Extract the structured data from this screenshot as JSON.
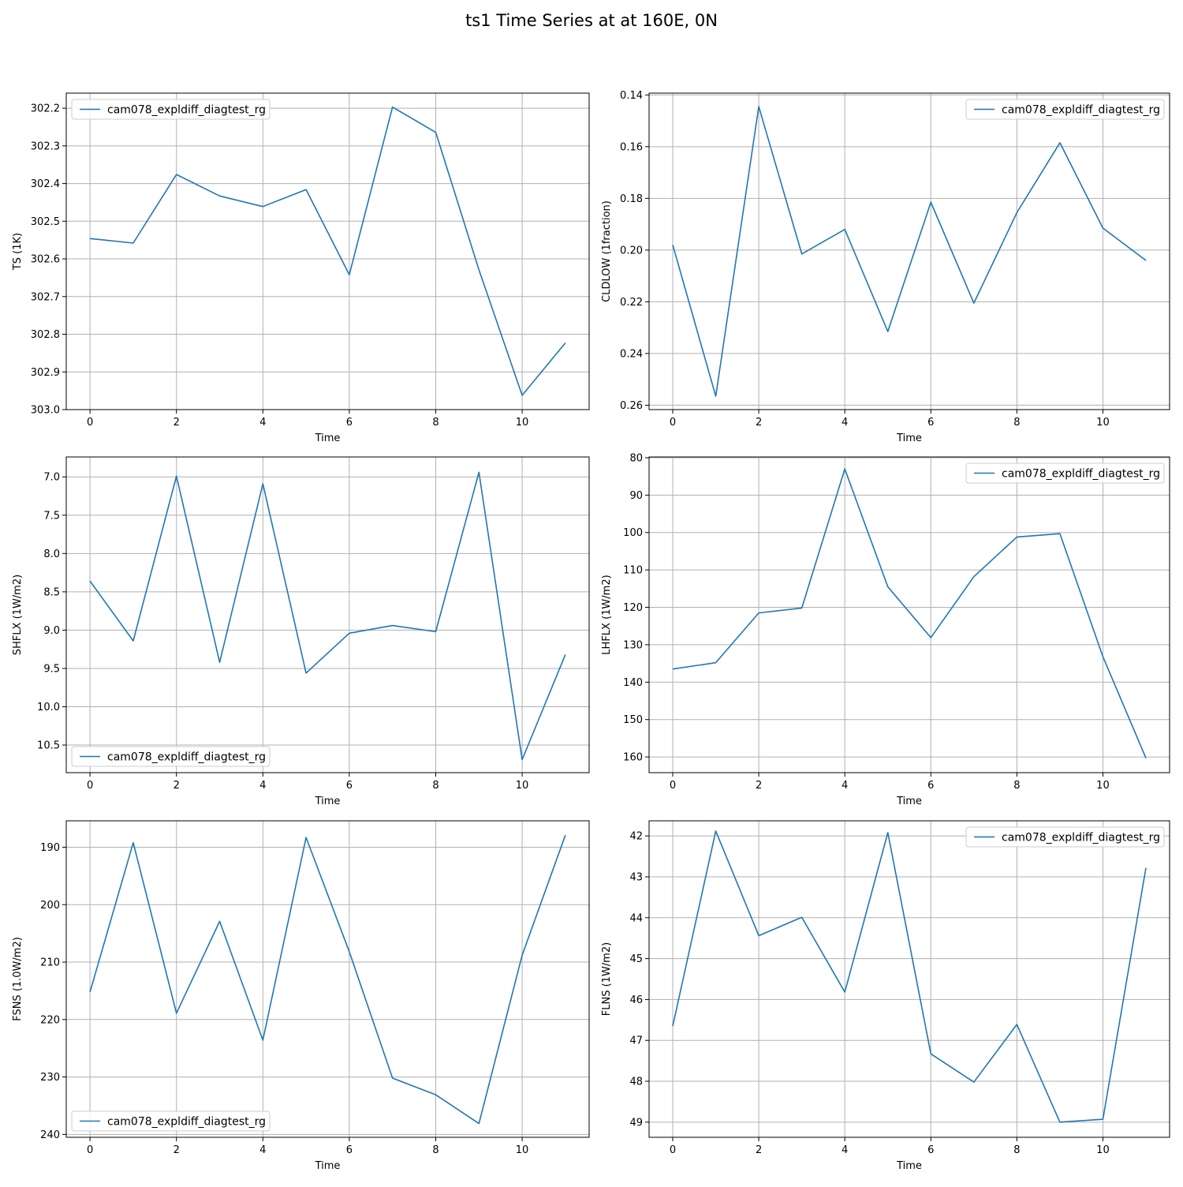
{
  "figure": {
    "title": "ts1 Time Series at at 160E, 0N"
  },
  "colors": {
    "series": "#1f77b4",
    "grid": "#b0b0b0",
    "axes": "#000000",
    "legend_border": "#cccccc"
  },
  "chart_data": [
    {
      "type": "line",
      "xlabel": "Time",
      "ylabel": "TS (1K)",
      "xlim": [
        -0.55,
        11.55
      ],
      "ylim": [
        303.0,
        302.16
      ],
      "y_inverted": true,
      "grid": true,
      "legend_loc": "upper-left",
      "xticks": [
        0,
        2,
        4,
        6,
        8,
        10
      ],
      "yticks": [
        302.2,
        302.3,
        302.4,
        302.5,
        302.6,
        302.7,
        302.8,
        302.9,
        303.0
      ],
      "ytick_labels": [
        "302.2",
        "302.3",
        "302.4",
        "302.5",
        "302.6",
        "302.7",
        "302.8",
        "302.9",
        "303.0"
      ],
      "x": [
        0,
        1,
        2,
        3,
        4,
        5,
        6,
        7,
        8,
        9,
        10,
        11
      ],
      "series": [
        {
          "name": "cam078_expldiff_diagtest_rg",
          "values": [
            302.546,
            302.558,
            302.376,
            302.433,
            302.461,
            302.416,
            302.642,
            302.197,
            302.264,
            302.629,
            302.962,
            302.823
          ]
        }
      ]
    },
    {
      "type": "line",
      "xlabel": "Time",
      "ylabel": "CLDLOW (1fraction)",
      "xlim": [
        -0.55,
        11.55
      ],
      "ylim": [
        0.2617,
        0.1393
      ],
      "y_inverted": true,
      "grid": true,
      "legend_loc": "upper-right",
      "xticks": [
        0,
        2,
        4,
        6,
        8,
        10
      ],
      "yticks": [
        0.14,
        0.16,
        0.18,
        0.2,
        0.22,
        0.24,
        0.26
      ],
      "ytick_labels": [
        "0.14",
        "0.16",
        "0.18",
        "0.20",
        "0.22",
        "0.24",
        "0.26"
      ],
      "x": [
        0,
        1,
        2,
        3,
        4,
        5,
        6,
        7,
        8,
        9,
        10,
        11
      ],
      "series": [
        {
          "name": "cam078_expldiff_diagtest_rg",
          "values": [
            0.198,
            0.2565,
            0.1445,
            0.2015,
            0.192,
            0.2315,
            0.1815,
            0.2205,
            0.1855,
            0.1585,
            0.1915,
            0.204
          ]
        }
      ]
    },
    {
      "type": "line",
      "xlabel": "Time",
      "ylabel": "SHFLX (1W/m2)",
      "xlim": [
        -0.55,
        11.55
      ],
      "ylim": [
        10.86,
        6.74
      ],
      "y_inverted": true,
      "grid": true,
      "legend_loc": "lower-left",
      "xticks": [
        0,
        2,
        4,
        6,
        8,
        10
      ],
      "yticks": [
        7.0,
        7.5,
        8.0,
        8.5,
        9.0,
        9.5,
        10.0,
        10.5
      ],
      "ytick_labels": [
        "7.0",
        "7.5",
        "8.0",
        "8.5",
        "9.0",
        "9.5",
        "10.0",
        "10.5"
      ],
      "x": [
        0,
        1,
        2,
        3,
        4,
        5,
        6,
        7,
        8,
        9,
        10,
        11
      ],
      "series": [
        {
          "name": "cam078_expldiff_diagtest_rg",
          "values": [
            8.36,
            9.14,
            6.99,
            9.42,
            7.09,
            9.56,
            9.04,
            8.94,
            9.02,
            6.94,
            10.69,
            9.32
          ]
        }
      ]
    },
    {
      "type": "line",
      "xlabel": "Time",
      "ylabel": "LHFLX (1W/m2)",
      "xlim": [
        -0.55,
        11.55
      ],
      "ylim": [
        164.2,
        79.8
      ],
      "y_inverted": true,
      "grid": true,
      "legend_loc": "upper-right",
      "xticks": [
        0,
        2,
        4,
        6,
        8,
        10
      ],
      "yticks": [
        80,
        90,
        100,
        110,
        120,
        130,
        140,
        150,
        160
      ],
      "ytick_labels": [
        "80",
        "90",
        "100",
        "110",
        "120",
        "130",
        "140",
        "150",
        "160"
      ],
      "x": [
        0,
        1,
        2,
        3,
        4,
        5,
        6,
        7,
        8,
        9,
        10,
        11
      ],
      "series": [
        {
          "name": "cam078_expldiff_diagtest_rg",
          "values": [
            136.5,
            134.8,
            121.5,
            120.2,
            83.0,
            114.5,
            128.1,
            111.8,
            101.2,
            100.3,
            133.2,
            160.3
          ]
        }
      ]
    },
    {
      "type": "line",
      "xlabel": "Time",
      "ylabel": "FSNS (1.0W/m2)",
      "xlim": [
        -0.55,
        11.55
      ],
      "ylim": [
        240.5,
        185.4
      ],
      "y_inverted": true,
      "grid": true,
      "legend_loc": "lower-left",
      "xticks": [
        0,
        2,
        4,
        6,
        8,
        10
      ],
      "yticks": [
        190,
        200,
        210,
        220,
        230,
        240
      ],
      "ytick_labels": [
        "190",
        "200",
        "210",
        "220",
        "230",
        "240"
      ],
      "x": [
        0,
        1,
        2,
        3,
        4,
        5,
        6,
        7,
        8,
        9,
        10,
        11
      ],
      "series": [
        {
          "name": "cam078_expldiff_diagtest_rg",
          "values": [
            215.2,
            189.2,
            218.9,
            202.9,
            223.6,
            188.3,
            208.2,
            230.2,
            233.1,
            238.1,
            208.8,
            187.9
          ]
        }
      ]
    },
    {
      "type": "line",
      "xlabel": "Time",
      "ylabel": "FLNS (1W/m2)",
      "xlim": [
        -0.55,
        11.55
      ],
      "ylim": [
        49.37,
        41.63
      ],
      "y_inverted": true,
      "grid": true,
      "legend_loc": "upper-right",
      "xticks": [
        0,
        2,
        4,
        6,
        8,
        10
      ],
      "yticks": [
        42,
        43,
        44,
        45,
        46,
        47,
        48,
        49
      ],
      "ytick_labels": [
        "42",
        "43",
        "44",
        "45",
        "46",
        "47",
        "48",
        "49"
      ],
      "x": [
        0,
        1,
        2,
        3,
        4,
        5,
        6,
        7,
        8,
        9,
        10,
        11
      ],
      "series": [
        {
          "name": "cam078_expldiff_diagtest_rg",
          "values": [
            46.65,
            41.88,
            44.44,
            43.99,
            45.82,
            41.92,
            47.33,
            48.02,
            46.61,
            49.0,
            48.93,
            42.78
          ]
        }
      ]
    }
  ]
}
